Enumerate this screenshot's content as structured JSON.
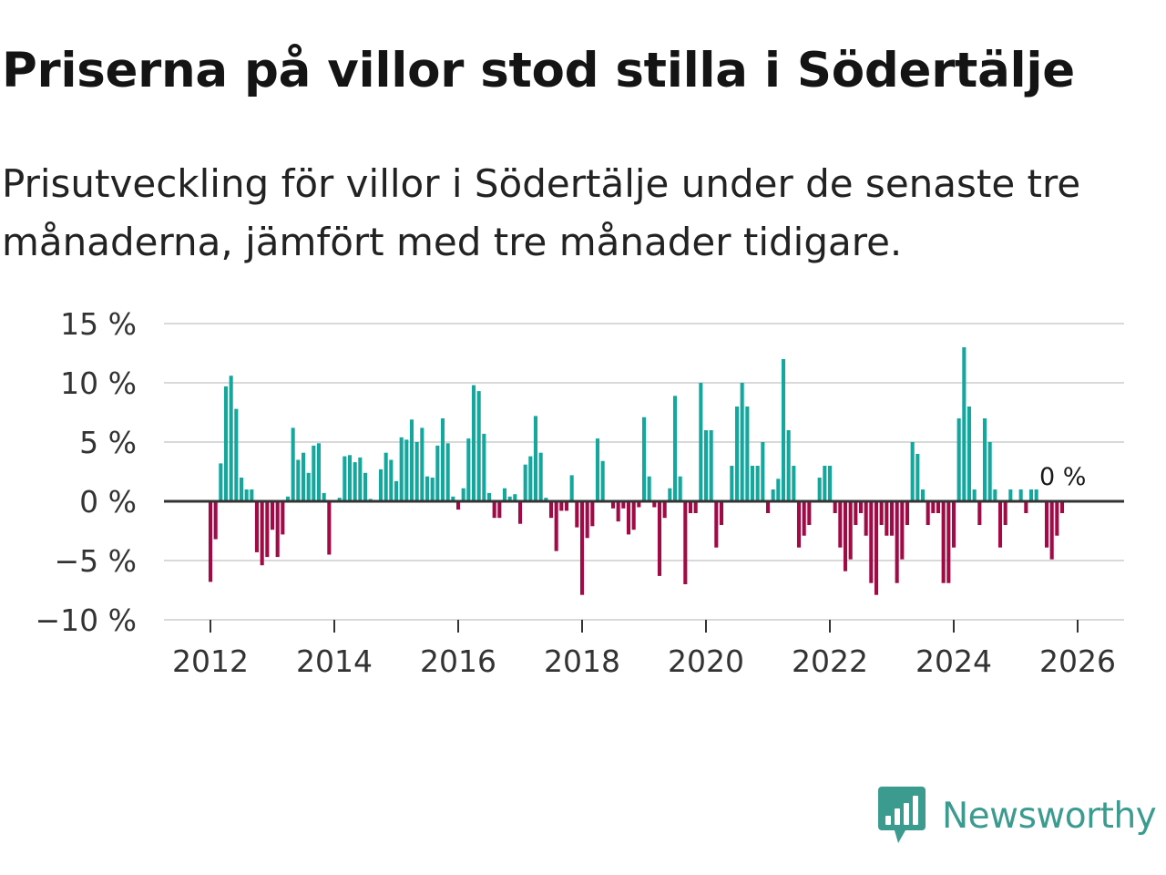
{
  "title": "Priserna på villor stod stilla i Södertälje",
  "subtitle": "Prisutveckling för villor i Södertälje under de senaste tre månaderna, jämfört med tre månader tidigare.",
  "logo": {
    "text": "Newsworthy"
  },
  "colors": {
    "positive": "#13a89e",
    "negative": "#a10a45",
    "grid": "#d9d9d9",
    "zero_line": "#333333",
    "brand": "#3a9b8e"
  },
  "chart_data": {
    "type": "bar",
    "title": "Priserna på villor stod stilla i Södertälje",
    "xlabel": "",
    "ylabel": "",
    "ylim": [
      -10,
      15
    ],
    "xlim": [
      2011.25,
      2026.75
    ],
    "y_ticks": [
      15,
      10,
      5,
      0,
      -5,
      -10
    ],
    "y_tick_labels": [
      "15 %",
      "10 %",
      "5 %",
      "0 %",
      "−5 %",
      "−10 %"
    ],
    "x_ticks": [
      2012,
      2014,
      2016,
      2018,
      2020,
      2022,
      2024,
      2026
    ],
    "x_tick_labels": [
      "2012",
      "2014",
      "2016",
      "2018",
      "2020",
      "2022",
      "2024",
      "2026"
    ],
    "start": "2012-01",
    "frequency": "monthly",
    "last_value_label": "0 %",
    "values": [
      -6.8,
      -3.2,
      3.2,
      9.7,
      10.6,
      7.8,
      2.0,
      1.0,
      1.0,
      -4.3,
      -5.4,
      -4.7,
      -2.4,
      -4.7,
      -2.8,
      0.4,
      6.2,
      3.5,
      4.1,
      2.4,
      4.7,
      4.9,
      0.7,
      -4.5,
      0,
      0.3,
      3.8,
      3.9,
      3.3,
      3.7,
      2.4,
      0.2,
      0,
      2.7,
      4.1,
      3.5,
      1.7,
      5.4,
      5.2,
      6.9,
      5.0,
      6.2,
      2.1,
      2.0,
      4.7,
      7.0,
      4.9,
      0.4,
      -0.7,
      1.1,
      5.3,
      9.8,
      9.3,
      5.7,
      0.7,
      -1.4,
      -1.4,
      1.1,
      0.4,
      0.6,
      -1.9,
      3.1,
      3.8,
      7.2,
      4.1,
      0.3,
      -1.4,
      -4.2,
      -0.8,
      -0.8,
      2.2,
      -2.2,
      -7.9,
      -3.1,
      -2.1,
      5.3,
      3.4,
      0,
      -0.6,
      -1.7,
      -0.6,
      -2.8,
      -2.4,
      -0.5,
      7.1,
      2.1,
      -0.5,
      -6.3,
      -1.4,
      1.1,
      8.9,
      2.1,
      -7.0,
      -1.0,
      -1.0,
      10.0,
      6.0,
      6.0,
      -3.9,
      -2.0,
      0,
      3.0,
      8.0,
      10.0,
      8.0,
      3.0,
      3.0,
      5.0,
      -1.0,
      1.0,
      1.9,
      12.0,
      6.0,
      3.0,
      -3.9,
      -2.9,
      -2.0,
      0,
      2.0,
      3.0,
      3.0,
      -1.0,
      -3.9,
      -5.9,
      -4.9,
      -2.0,
      -1.0,
      -2.9,
      -6.9,
      -7.9,
      -2.0,
      -2.9,
      -2.9,
      -6.9,
      -4.9,
      -2.0,
      5.0,
      4.0,
      1.0,
      -2.0,
      -1.0,
      -1.0,
      -6.9,
      -6.9,
      -3.9,
      7.0,
      13.0,
      8.0,
      1.0,
      -2.0,
      7.0,
      5.0,
      1.0,
      -3.9,
      -2.0,
      1.0,
      0,
      1.0,
      -1.0,
      1.0,
      1.0,
      0,
      -3.9,
      -4.9,
      -2.9,
      -1.0,
      0
    ]
  }
}
